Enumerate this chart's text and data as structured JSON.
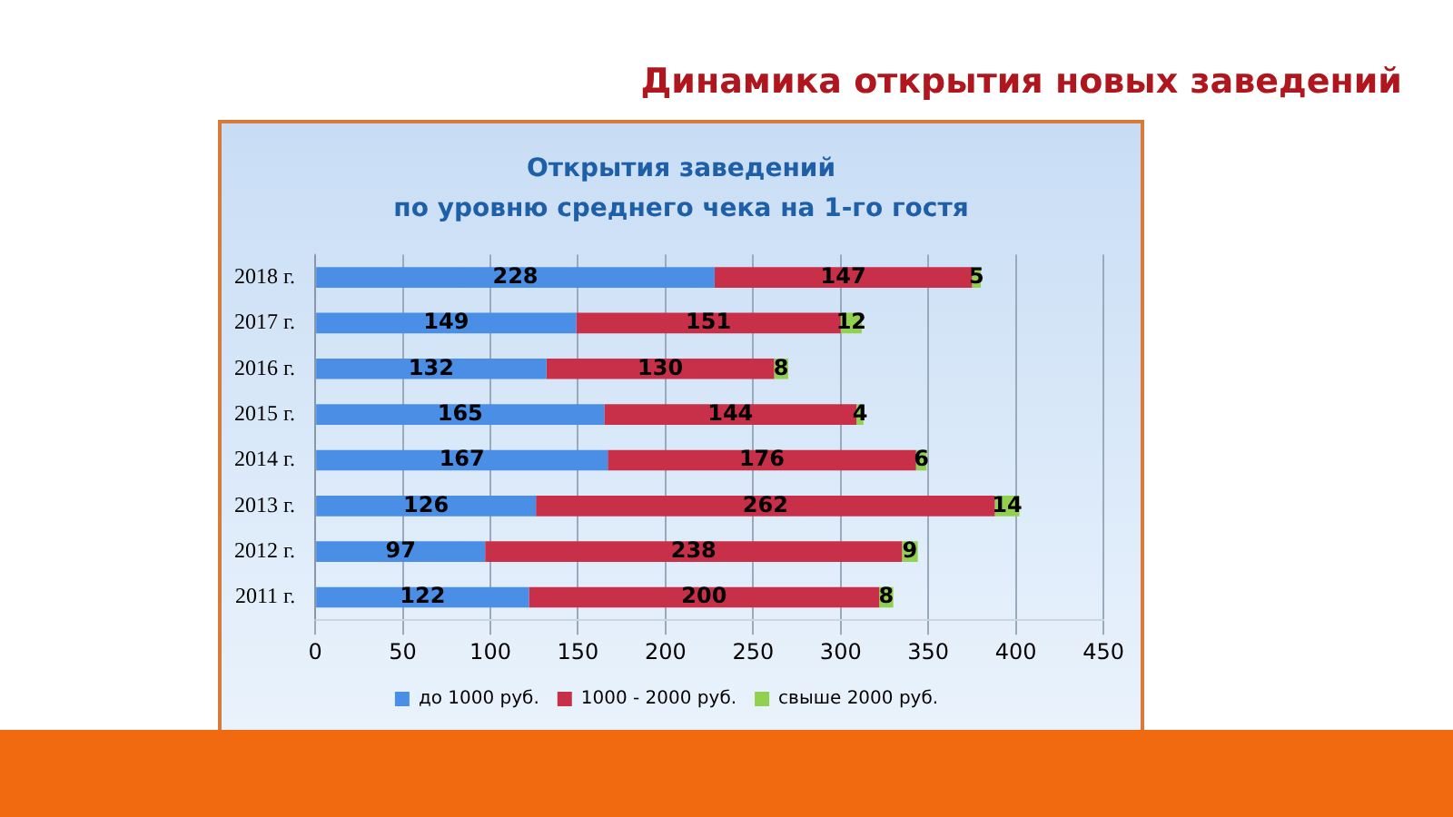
{
  "chart_data": {
    "type": "bar",
    "orientation": "horizontal",
    "stacked": true,
    "title": "Динамика открытия новых заведений",
    "subtitle": "Открытия заведений\nпо уровню среднего чека на 1-го гостя",
    "categories": [
      "2018 г.",
      "2017 г.",
      "2016 г.",
      "2015 г.",
      "2014 г.",
      "2013 г.",
      "2012 г.",
      "2011 г."
    ],
    "series": [
      {
        "name": "до 1000 руб.",
        "color": "#4a8ee6",
        "values": [
          228,
          149,
          132,
          165,
          167,
          126,
          97,
          122
        ]
      },
      {
        "name": "1000 - 2000 руб.",
        "color": "#c8304a",
        "values": [
          147,
          151,
          130,
          144,
          176,
          262,
          238,
          200
        ]
      },
      {
        "name": "свыше 2000 руб.",
        "color": "#92d050",
        "values": [
          5,
          12,
          8,
          4,
          6,
          14,
          9,
          8
        ]
      }
    ],
    "xlim": [
      0,
      450
    ],
    "xticks": [
      0,
      50,
      100,
      150,
      200,
      250,
      300,
      350,
      400,
      450
    ],
    "grid": "x",
    "legend": "bottom",
    "data_labels": true
  }
}
